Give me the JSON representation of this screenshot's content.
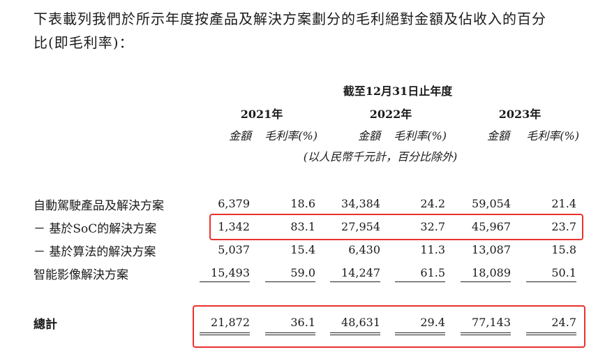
{
  "intro": {
    "line1": "下表載列我們於所示年度按產品及解決方案劃分的毛利絕對金額及佔收入的百分",
    "line2": "比(即毛利率)："
  },
  "header": {
    "period": "截至12月31日止年度",
    "years": [
      "2021年",
      "2022年",
      "2023年"
    ],
    "amount_label": "金額",
    "margin_label": "毛利率(%)",
    "unit_note": "(以人民幣千元計，百分比除外)"
  },
  "rows": [
    {
      "label": "自動駕駛產品及解決方案",
      "values": [
        "6,379",
        "18.6",
        "34,384",
        "24.2",
        "59,054",
        "21.4"
      ]
    },
    {
      "label": "－ 基於SoC的解決方案",
      "values": [
        "1,342",
        "83.1",
        "27,954",
        "32.7",
        "45,967",
        "23.7"
      ]
    },
    {
      "label": "－ 基於算法的解決方案",
      "values": [
        "5,037",
        "15.4",
        "6,430",
        "11.3",
        "13,087",
        "15.8"
      ]
    },
    {
      "label": "智能影像解決方案",
      "values": [
        "15,493",
        "59.0",
        "14,247",
        "61.5",
        "18,089",
        "50.1"
      ]
    }
  ],
  "total": {
    "label": "總計",
    "values": [
      "21,872",
      "36.1",
      "48,631",
      "29.4",
      "77,143",
      "24.7"
    ]
  },
  "highlight_color": "#e8322e"
}
